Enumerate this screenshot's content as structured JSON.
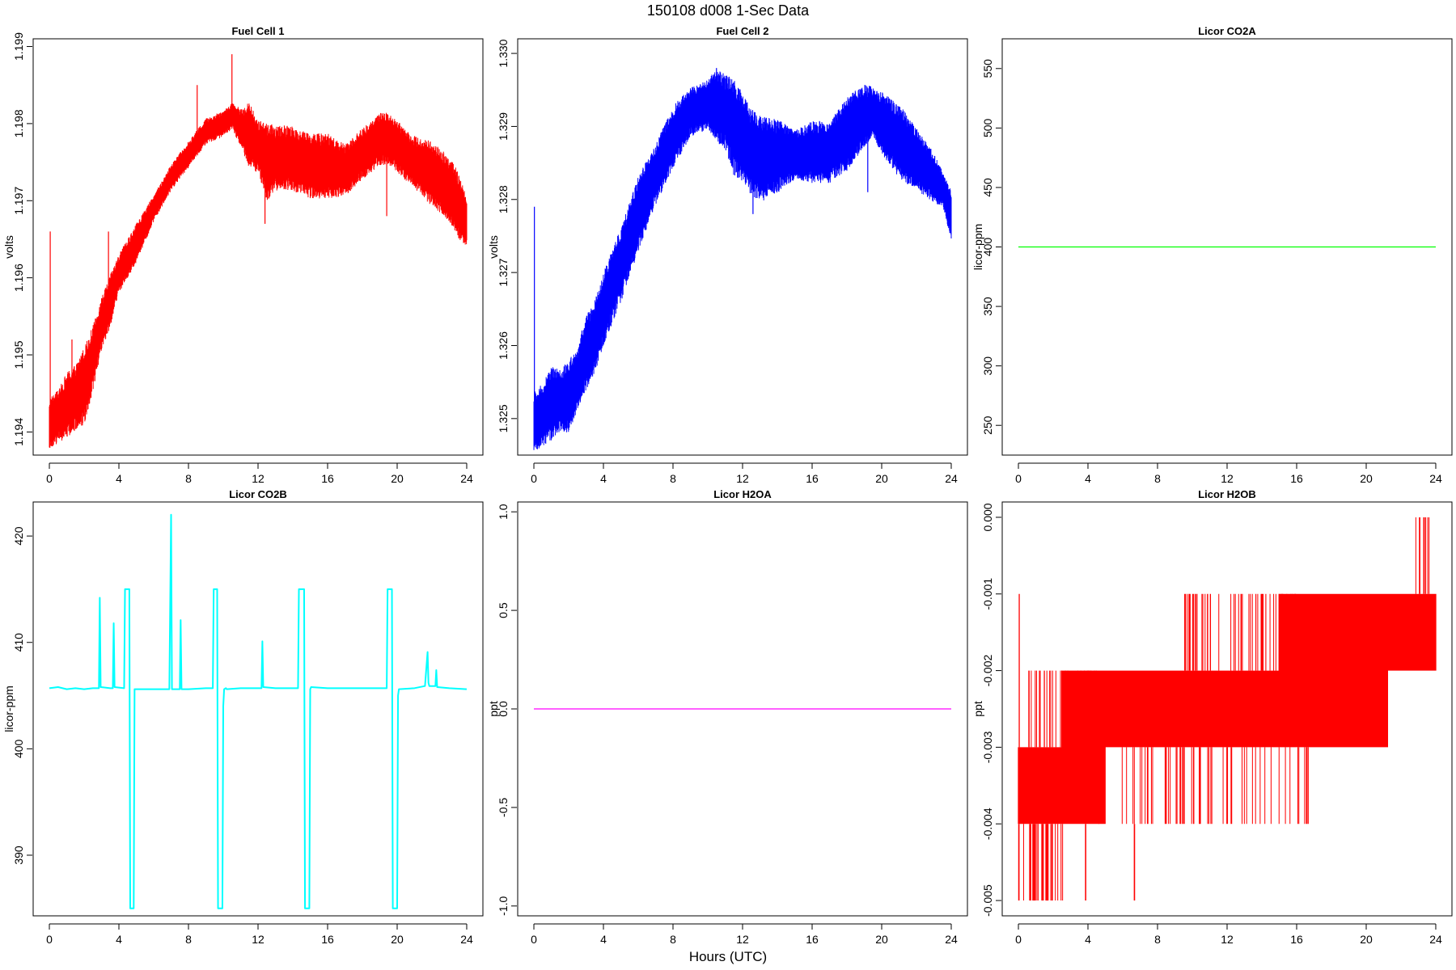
{
  "figure": {
    "title": "150108   d008   1-Sec Data",
    "xlabel": "Hours (UTC)"
  },
  "colors": {
    "red": "#ff0000",
    "blue": "#0000ff",
    "green": "#00ff00",
    "cyan": "#00ffff",
    "magenta": "#ff00ff"
  },
  "chart_data": [
    {
      "type": "line",
      "title": "Fuel Cell 1",
      "ylabel": "volts",
      "xlim": [
        0,
        24
      ],
      "ylim": [
        1.1937,
        1.1991
      ],
      "xticks": [
        0,
        4,
        8,
        12,
        16,
        20,
        24
      ],
      "xtick_labels": [
        "0",
        "4",
        "8",
        "12",
        "16",
        "20",
        "24"
      ],
      "yticks": [
        1.194,
        1.195,
        1.196,
        1.197,
        1.198,
        1.199
      ],
      "ytick_labels": [
        "1.194",
        "1.195",
        "1.196",
        "1.197",
        "1.198",
        "1.199"
      ],
      "color": "#ff0000",
      "style": "band",
      "series": [
        {
          "x": [
            0,
            0.5,
            1,
            1.5,
            2,
            2.5,
            3,
            3.5,
            4,
            5,
            6,
            7,
            8,
            9,
            10,
            10.5,
            11,
            11.5,
            12,
            12.5,
            13,
            14,
            15,
            16,
            17,
            18,
            19,
            19.5,
            20,
            21,
            22,
            23,
            23.5,
            24
          ],
          "y_low": [
            1.1939,
            1.194,
            1.1941,
            1.1942,
            1.1943,
            1.1947,
            1.1952,
            1.1955,
            1.1959,
            1.1963,
            1.1968,
            1.1972,
            1.1975,
            1.1978,
            1.1979,
            1.198,
            1.1978,
            1.1976,
            1.1975,
            1.1972,
            1.1973,
            1.1973,
            1.1972,
            1.1972,
            1.1972,
            1.1974,
            1.1976,
            1.1976,
            1.1975,
            1.1973,
            1.1971,
            1.1969,
            1.1967,
            1.1965
          ],
          "y_high": [
            1.1943,
            1.1944,
            1.1946,
            1.1947,
            1.1949,
            1.1952,
            1.1956,
            1.1959,
            1.1962,
            1.1966,
            1.197,
            1.1974,
            1.1977,
            1.198,
            1.1981,
            1.1982,
            1.1981,
            1.1981,
            1.1979,
            1.1978,
            1.1978,
            1.1978,
            1.1977,
            1.1977,
            1.1976,
            1.1978,
            1.198,
            1.198,
            1.1979,
            1.1977,
            1.1976,
            1.1974,
            1.1972,
            1.1969
          ]
        }
      ],
      "spikes": [
        {
          "x": 0.05,
          "from": 1.194,
          "to": 1.1966
        },
        {
          "x": 1.3,
          "from": 1.1944,
          "to": 1.1952
        },
        {
          "x": 3.4,
          "from": 1.1956,
          "to": 1.1966
        },
        {
          "x": 8.5,
          "from": 1.1977,
          "to": 1.1985
        },
        {
          "x": 10.5,
          "from": 1.1981,
          "to": 1.1989
        },
        {
          "x": 12.4,
          "from": 1.1978,
          "to": 1.1967
        },
        {
          "x": 19.4,
          "from": 1.1976,
          "to": 1.1968
        }
      ]
    },
    {
      "type": "line",
      "title": "Fuel Cell 2",
      "ylabel": "volts",
      "xlim": [
        0,
        24
      ],
      "ylim": [
        1.3245,
        1.3302
      ],
      "xticks": [
        0,
        4,
        8,
        12,
        16,
        20,
        24
      ],
      "xtick_labels": [
        "0",
        "4",
        "8",
        "12",
        "16",
        "20",
        "24"
      ],
      "yticks": [
        1.325,
        1.326,
        1.327,
        1.328,
        1.329,
        1.33
      ],
      "ytick_labels": [
        "1.325",
        "1.326",
        "1.327",
        "1.328",
        "1.329",
        "1.330"
      ],
      "color": "#0000ff",
      "style": "band",
      "series": [
        {
          "x": [
            0,
            0.5,
            1,
            1.5,
            2,
            2.5,
            3,
            3.5,
            4,
            5,
            6,
            7,
            8,
            9,
            10,
            10.5,
            11,
            11.5,
            12,
            12.5,
            13,
            14,
            15,
            16,
            17,
            18,
            19,
            19.5,
            20,
            21,
            22,
            23,
            23.5,
            24
          ],
          "y_low": [
            1.3247,
            1.3248,
            1.3249,
            1.325,
            1.325,
            1.3253,
            1.3256,
            1.3258,
            1.3262,
            1.3268,
            1.3275,
            1.3281,
            1.3286,
            1.329,
            1.3291,
            1.329,
            1.3289,
            1.3286,
            1.3285,
            1.3283,
            1.3282,
            1.3283,
            1.3284,
            1.3284,
            1.3284,
            1.3286,
            1.3289,
            1.329,
            1.3288,
            1.3285,
            1.3283,
            1.3281,
            1.328,
            1.3276
          ],
          "y_high": [
            1.3252,
            1.3253,
            1.3255,
            1.3255,
            1.3256,
            1.3258,
            1.3262,
            1.3264,
            1.3268,
            1.3274,
            1.3281,
            1.3286,
            1.3291,
            1.3294,
            1.3295,
            1.3296,
            1.3295,
            1.3294,
            1.3292,
            1.329,
            1.3289,
            1.3289,
            1.3288,
            1.3289,
            1.3289,
            1.3292,
            1.3294,
            1.3294,
            1.3293,
            1.3291,
            1.3288,
            1.3285,
            1.3283,
            1.328
          ]
        }
      ],
      "spikes": [
        {
          "x": 0.03,
          "from": 1.325,
          "to": 1.3279
        },
        {
          "x": 10.5,
          "from": 1.3293,
          "to": 1.3298
        },
        {
          "x": 12.6,
          "from": 1.3285,
          "to": 1.3278
        },
        {
          "x": 19.2,
          "from": 1.329,
          "to": 1.3281
        }
      ]
    },
    {
      "type": "line",
      "title": "Licor CO2A",
      "ylabel": "licor-ppm",
      "xlim": [
        0,
        24
      ],
      "ylim": [
        225,
        575
      ],
      "xticks": [
        0,
        4,
        8,
        12,
        16,
        20,
        24
      ],
      "xtick_labels": [
        "0",
        "4",
        "8",
        "12",
        "16",
        "20",
        "24"
      ],
      "yticks": [
        250,
        300,
        350,
        400,
        450,
        500,
        550
      ],
      "ytick_labels": [
        "250",
        "300",
        "350",
        "400",
        "450",
        "500",
        "550"
      ],
      "color": "#00ff00",
      "style": "line",
      "series": [
        {
          "x": [
            0,
            24
          ],
          "y": [
            400,
            400
          ]
        }
      ]
    },
    {
      "type": "line",
      "title": "Licor CO2B",
      "ylabel": "licor-ppm",
      "xlim": [
        0,
        24
      ],
      "ylim": [
        384.3,
        423.2
      ],
      "xticks": [
        0,
        4,
        8,
        12,
        16,
        20,
        24
      ],
      "xtick_labels": [
        "0",
        "4",
        "8",
        "12",
        "16",
        "20",
        "24"
      ],
      "yticks": [
        390,
        400,
        410,
        420
      ],
      "ytick_labels": [
        "390",
        "400",
        "410",
        "420"
      ],
      "color": "#00ffff",
      "style": "line",
      "series": [
        {
          "x": [
            0,
            0.5,
            1,
            1.5,
            2,
            2.5,
            2.85,
            2.9,
            2.95,
            3.5,
            3.65,
            3.7,
            3.75,
            4.3,
            4.35,
            4.4,
            4.6,
            4.65,
            4.7,
            4.85,
            4.9,
            4.95,
            6,
            6.9,
            7.0,
            7.05,
            7.1,
            7.5,
            7.55,
            7.6,
            8,
            9,
            9.4,
            9.45,
            9.5,
            9.65,
            9.7,
            9.75,
            9.95,
            10.0,
            10.05,
            10.15,
            10.2,
            11,
            12.2,
            12.25,
            12.3,
            13,
            14.3,
            14.35,
            14.4,
            14.65,
            14.7,
            14.75,
            14.95,
            15.0,
            15.05,
            16,
            18,
            19.4,
            19.45,
            19.5,
            19.7,
            19.75,
            19.8,
            20.0,
            20.05,
            20.1,
            21,
            21.6,
            21.75,
            21.8,
            21.85,
            22.2,
            22.25,
            22.3,
            23,
            24
          ],
          "y": [
            405.7,
            405.8,
            405.6,
            405.7,
            405.6,
            405.7,
            405.7,
            414.2,
            405.8,
            405.7,
            405.7,
            411.8,
            405.8,
            405.7,
            415.0,
            415.0,
            415.0,
            385.0,
            385.0,
            385.0,
            405.6,
            405.6,
            405.6,
            405.6,
            422.0,
            405.6,
            405.6,
            405.6,
            412.1,
            405.6,
            405.6,
            405.7,
            405.7,
            415.0,
            415.0,
            415.0,
            385.0,
            385.0,
            385.0,
            404.0,
            405.6,
            405.7,
            405.6,
            405.7,
            405.7,
            410.1,
            405.8,
            405.7,
            405.7,
            415.0,
            415.0,
            415.0,
            385.0,
            385.0,
            385.0,
            405.6,
            405.8,
            405.7,
            405.7,
            405.7,
            415.0,
            415.0,
            415.0,
            385.0,
            385.0,
            385.0,
            405.0,
            405.6,
            405.7,
            405.9,
            409.1,
            406.2,
            405.9,
            405.9,
            407.4,
            405.8,
            405.7,
            405.6
          ]
        }
      ]
    },
    {
      "type": "line",
      "title": "Licor H2OA",
      "ylabel": "ppt",
      "xlim": [
        0,
        24
      ],
      "ylim": [
        -1.05,
        1.05
      ],
      "xticks": [
        0,
        4,
        8,
        12,
        16,
        20,
        24
      ],
      "xtick_labels": [
        "0",
        "4",
        "8",
        "12",
        "16",
        "20",
        "24"
      ],
      "yticks": [
        -1.0,
        -0.5,
        0.0,
        0.5,
        1.0
      ],
      "ytick_labels": [
        "-1.0",
        "-0.5",
        "0.0",
        "0.5",
        "1.0"
      ],
      "color": "#ff00ff",
      "style": "line",
      "series": [
        {
          "x": [
            0,
            24
          ],
          "y": [
            0,
            0
          ]
        }
      ]
    },
    {
      "type": "line",
      "title": "Licor H2OB",
      "ylabel": "ppt",
      "xlim": [
        0,
        24
      ],
      "ylim": [
        -0.0052,
        0.0002
      ],
      "xticks": [
        0,
        4,
        8,
        12,
        16,
        20,
        24
      ],
      "xtick_labels": [
        "0",
        "4",
        "8",
        "12",
        "16",
        "20",
        "24"
      ],
      "yticks": [
        -0.005,
        -0.004,
        -0.003,
        -0.002,
        -0.001,
        0.0
      ],
      "ytick_labels": [
        "-0.005",
        "-0.004",
        "-0.003",
        "-0.002",
        "-0.001",
        "0.000"
      ],
      "color": "#ff0000",
      "style": "quantized",
      "series": [
        {
          "x": [
            0,
            1,
            4,
            6,
            7.5,
            9,
            10.5,
            12,
            14,
            16,
            17,
            20.5,
            22,
            24
          ],
          "y_low": [
            -0.004,
            -0.004,
            -0.004,
            -0.003,
            -0.003,
            -0.003,
            -0.003,
            -0.003,
            -0.003,
            -0.003,
            -0.003,
            -0.003,
            -0.002,
            -0.002
          ],
          "y_high": [
            -0.003,
            -0.003,
            -0.002,
            -0.002,
            -0.002,
            -0.002,
            -0.002,
            -0.002,
            -0.002,
            -0.001,
            -0.001,
            -0.001,
            -0.001,
            -0.001
          ]
        }
      ],
      "spike_ranges": [
        {
          "x_from": 0.0,
          "x_to": 2.6,
          "from": -0.005,
          "to": -0.004,
          "count": 36
        },
        {
          "x_from": 0.0,
          "x_to": 0.1,
          "from": -0.003,
          "to": -0.001,
          "count": 2
        },
        {
          "x_from": 0.3,
          "x_to": 4.5,
          "from": -0.003,
          "to": -0.002,
          "count": 30
        },
        {
          "x_from": 3.8,
          "x_to": 3.9,
          "from": -0.005,
          "to": -0.004,
          "count": 2
        },
        {
          "x_from": 6.6,
          "x_to": 6.7,
          "from": -0.005,
          "to": -0.004,
          "count": 2
        },
        {
          "x_from": 4.5,
          "x_to": 17.0,
          "from": -0.004,
          "to": -0.003,
          "count": 60
        },
        {
          "x_from": 9.5,
          "x_to": 16.0,
          "from": -0.002,
          "to": -0.001,
          "count": 55
        },
        {
          "x_from": 22.8,
          "x_to": 23.8,
          "from": -0.001,
          "to": 0.0,
          "count": 8
        }
      ]
    }
  ]
}
